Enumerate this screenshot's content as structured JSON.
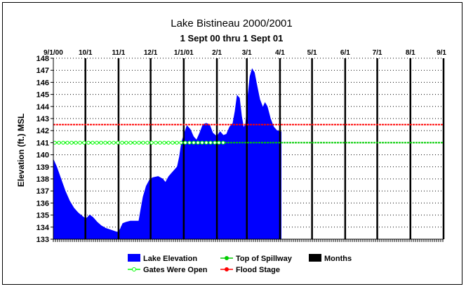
{
  "chart_data": {
    "type": "area",
    "title": "Lake Bistineau 2000/2001",
    "subtitle": "1 Sept 00 thru 1 Sept 01",
    "ylabel": "Elevation (ft.) MSL",
    "xlabel": "",
    "ylim": [
      133,
      148
    ],
    "yticks": [
      133,
      134,
      135,
      136,
      137,
      138,
      139,
      140,
      141,
      142,
      143,
      144,
      145,
      146,
      147,
      148
    ],
    "x_range": [
      "2000-09-01",
      "2001-09-01"
    ],
    "month_ticks": [
      {
        "label": "9/1/00",
        "date": "2000-09-01"
      },
      {
        "label": "10/1",
        "date": "2000-10-01"
      },
      {
        "label": "11/1",
        "date": "2000-11-01"
      },
      {
        "label": "12/1",
        "date": "2000-12-01"
      },
      {
        "label": "1/1/01",
        "date": "2001-01-01"
      },
      {
        "label": "2/1",
        "date": "2001-02-01"
      },
      {
        "label": "3/1",
        "date": "2001-03-01"
      },
      {
        "label": "4/1",
        "date": "2001-04-01"
      },
      {
        "label": "5/1",
        "date": "2001-05-01"
      },
      {
        "label": "6/1",
        "date": "2001-06-01"
      },
      {
        "label": "7/1",
        "date": "2001-07-01"
      },
      {
        "label": "8/1",
        "date": "2001-08-01"
      },
      {
        "label": "9/1",
        "date": "2001-09-01"
      }
    ],
    "grid": true,
    "legend_position": "bottom",
    "legend": [
      {
        "label": "Lake Elevation",
        "kind": "area",
        "color": "#0000ff"
      },
      {
        "label": "Top of Spillway",
        "kind": "line",
        "color": "#00cc00"
      },
      {
        "label": "Months",
        "kind": "bar",
        "color": "#000000"
      },
      {
        "label": "Gates Were Open",
        "kind": "marker-line",
        "color": "#00ff00"
      },
      {
        "label": "Flood Stage",
        "kind": "line",
        "color": "#ff0000"
      }
    ],
    "series": [
      {
        "name": "Lake Elevation",
        "color": "#0000ff",
        "points": [
          [
            "2000-09-01",
            139.6
          ],
          [
            "2000-09-04",
            139.0
          ],
          [
            "2000-09-08",
            138.0
          ],
          [
            "2000-09-12",
            137.0
          ],
          [
            "2000-09-16",
            136.2
          ],
          [
            "2000-09-20",
            135.6
          ],
          [
            "2000-09-24",
            135.2
          ],
          [
            "2000-09-28",
            134.9
          ],
          [
            "2000-10-01",
            134.7
          ],
          [
            "2000-10-03",
            134.8
          ],
          [
            "2000-10-05",
            135.0
          ],
          [
            "2000-10-08",
            134.8
          ],
          [
            "2000-10-12",
            134.4
          ],
          [
            "2000-10-16",
            134.1
          ],
          [
            "2000-10-20",
            133.9
          ],
          [
            "2000-10-25",
            133.75
          ],
          [
            "2000-10-30",
            133.6
          ],
          [
            "2000-11-01",
            133.6
          ],
          [
            "2000-11-03",
            133.9
          ],
          [
            "2000-11-05",
            134.3
          ],
          [
            "2000-11-08",
            134.4
          ],
          [
            "2000-11-12",
            134.5
          ],
          [
            "2000-11-16",
            134.5
          ],
          [
            "2000-11-20",
            134.5
          ],
          [
            "2000-11-22",
            135.5
          ],
          [
            "2000-11-24",
            136.5
          ],
          [
            "2000-11-27",
            137.4
          ],
          [
            "2000-11-30",
            137.9
          ],
          [
            "2000-12-03",
            138.1
          ],
          [
            "2000-12-08",
            138.2
          ],
          [
            "2000-12-12",
            138.0
          ],
          [
            "2000-12-15",
            137.7
          ],
          [
            "2000-12-18",
            138.2
          ],
          [
            "2000-12-22",
            138.6
          ],
          [
            "2000-12-26",
            139.0
          ],
          [
            "2000-12-28",
            139.8
          ],
          [
            "2000-12-30",
            141.0
          ],
          [
            "2001-01-01",
            141.6
          ],
          [
            "2001-01-04",
            142.4
          ],
          [
            "2001-01-07",
            142.1
          ],
          [
            "2001-01-10",
            141.5
          ],
          [
            "2001-01-13",
            141.2
          ],
          [
            "2001-01-16",
            141.8
          ],
          [
            "2001-01-19",
            142.5
          ],
          [
            "2001-01-22",
            142.6
          ],
          [
            "2001-01-25",
            142.5
          ],
          [
            "2001-01-28",
            141.8
          ],
          [
            "2001-02-01",
            141.5
          ],
          [
            "2001-02-04",
            141.9
          ],
          [
            "2001-02-07",
            141.6
          ],
          [
            "2001-02-10",
            141.7
          ],
          [
            "2001-02-13",
            142.3
          ],
          [
            "2001-02-16",
            142.6
          ],
          [
            "2001-02-18",
            143.6
          ],
          [
            "2001-02-20",
            144.9
          ],
          [
            "2001-02-22",
            144.7
          ],
          [
            "2001-02-24",
            143.2
          ],
          [
            "2001-02-26",
            142.2
          ],
          [
            "2001-02-28",
            142.6
          ],
          [
            "2001-03-02",
            144.8
          ],
          [
            "2001-03-04",
            146.5
          ],
          [
            "2001-03-06",
            147.1
          ],
          [
            "2001-03-08",
            146.8
          ],
          [
            "2001-03-10",
            145.9
          ],
          [
            "2001-03-13",
            144.6
          ],
          [
            "2001-03-16",
            143.9
          ],
          [
            "2001-03-18",
            144.3
          ],
          [
            "2001-03-20",
            144.0
          ],
          [
            "2001-03-23",
            143.0
          ],
          [
            "2001-03-26",
            142.3
          ],
          [
            "2001-03-29",
            142.0
          ],
          [
            "2001-04-02",
            141.9
          ]
        ]
      },
      {
        "name": "Top of Spillway",
        "color": "#00cc00",
        "value": 141.0,
        "x": [
          "2000-09-01",
          "2001-09-01"
        ]
      },
      {
        "name": "Flood Stage",
        "color": "#ff0000",
        "value": 142.5,
        "x": [
          "2000-09-01",
          "2001-09-01"
        ]
      },
      {
        "name": "Gates Were Open",
        "color": "#00ff00",
        "value": 141.0,
        "x": [
          "2000-09-01",
          "2001-02-08"
        ]
      }
    ]
  }
}
